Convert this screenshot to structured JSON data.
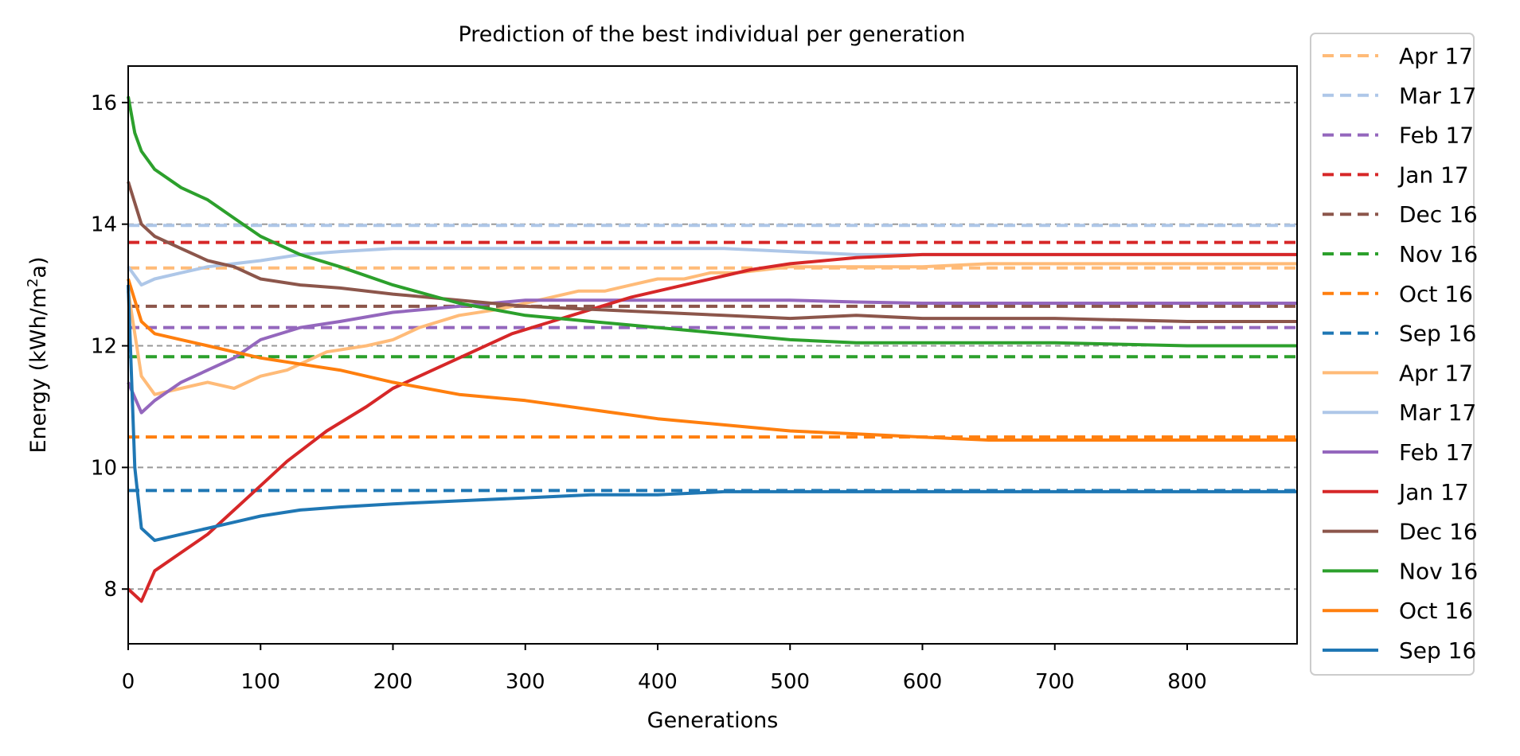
{
  "chart_data": {
    "type": "line",
    "title": "Prediction of the best individual per generation",
    "xlabel": "Generations",
    "ylabel_prefix": "Energy (kWh/m",
    "ylabel_sup": "2",
    "ylabel_suffix": "a)",
    "xlim": [
      0,
      883
    ],
    "ylim": [
      7.1,
      16.6
    ],
    "xticks": [
      0,
      100,
      200,
      300,
      400,
      500,
      600,
      700,
      800
    ],
    "yticks": [
      8,
      10,
      12,
      14,
      16
    ],
    "grid": "horizontal dashed grey at y-ticks",
    "legend_position": "outside right",
    "legend": [
      {
        "label": "Apr 17",
        "style": "dashed",
        "color": "#ffbb78"
      },
      {
        "label": "Mar 17",
        "style": "dashed",
        "color": "#aec7e8"
      },
      {
        "label": "Feb 17",
        "style": "dashed",
        "color": "#9467bd"
      },
      {
        "label": "Jan 17",
        "style": "dashed",
        "color": "#d62728"
      },
      {
        "label": "Dec 16",
        "style": "dashed",
        "color": "#8c564b"
      },
      {
        "label": "Nov 16",
        "style": "dashed",
        "color": "#2ca02c"
      },
      {
        "label": "Oct 16",
        "style": "dashed",
        "color": "#ff7f0e"
      },
      {
        "label": "Sep 16",
        "style": "dashed",
        "color": "#1f77b4"
      },
      {
        "label": "Apr 17",
        "style": "solid",
        "color": "#ffbb78"
      },
      {
        "label": "Mar 17",
        "style": "solid",
        "color": "#aec7e8"
      },
      {
        "label": "Feb 17",
        "style": "solid",
        "color": "#9467bd"
      },
      {
        "label": "Jan 17",
        "style": "solid",
        "color": "#d62728"
      },
      {
        "label": "Dec 16",
        "style": "solid",
        "color": "#8c564b"
      },
      {
        "label": "Nov 16",
        "style": "solid",
        "color": "#2ca02c"
      },
      {
        "label": "Oct 16",
        "style": "solid",
        "color": "#ff7f0e"
      },
      {
        "label": "Sep 16",
        "style": "solid",
        "color": "#1f77b4"
      }
    ],
    "reference_lines": [
      {
        "name": "Mar 17",
        "y": 13.98,
        "color": "#aec7e8"
      },
      {
        "name": "Jan 17",
        "y": 13.7,
        "color": "#d62728"
      },
      {
        "name": "Apr 17",
        "y": 13.28,
        "color": "#ffbb78"
      },
      {
        "name": "Dec 16",
        "y": 12.65,
        "color": "#8c564b"
      },
      {
        "name": "Feb 17",
        "y": 12.3,
        "color": "#9467bd"
      },
      {
        "name": "Nov 16",
        "y": 11.82,
        "color": "#2ca02c"
      },
      {
        "name": "Oct 16",
        "y": 10.5,
        "color": "#ff7f0e"
      },
      {
        "name": "Sep 16",
        "y": 9.62,
        "color": "#1f77b4"
      }
    ],
    "series": [
      {
        "name": "Apr 17",
        "color": "#ffbb78",
        "x": [
          0,
          10,
          20,
          40,
          60,
          80,
          100,
          120,
          150,
          180,
          200,
          220,
          250,
          280,
          300,
          320,
          340,
          360,
          380,
          400,
          420,
          440,
          460,
          480,
          500,
          550,
          600,
          650,
          700,
          800,
          883
        ],
        "y": [
          12.9,
          11.5,
          11.2,
          11.3,
          11.4,
          11.3,
          11.5,
          11.6,
          11.9,
          12.0,
          12.1,
          12.3,
          12.5,
          12.6,
          12.7,
          12.8,
          12.9,
          12.9,
          13.0,
          13.1,
          13.1,
          13.2,
          13.2,
          13.25,
          13.3,
          13.3,
          13.3,
          13.35,
          13.35,
          13.35,
          13.35
        ]
      },
      {
        "name": "Mar 17",
        "color": "#aec7e8",
        "x": [
          0,
          10,
          20,
          40,
          60,
          80,
          100,
          130,
          160,
          200,
          250,
          300,
          350,
          400,
          450,
          500,
          550,
          600,
          650,
          700,
          800,
          883
        ],
        "y": [
          13.3,
          13.0,
          13.1,
          13.2,
          13.3,
          13.35,
          13.4,
          13.5,
          13.55,
          13.6,
          13.6,
          13.6,
          13.6,
          13.6,
          13.6,
          13.55,
          13.5,
          13.5,
          13.5,
          13.5,
          13.5,
          13.5
        ]
      },
      {
        "name": "Feb 17",
        "color": "#9467bd",
        "x": [
          0,
          10,
          20,
          40,
          60,
          80,
          100,
          130,
          160,
          200,
          250,
          300,
          350,
          400,
          450,
          500,
          550,
          600,
          700,
          800,
          883
        ],
        "y": [
          11.4,
          10.9,
          11.1,
          11.4,
          11.6,
          11.8,
          12.1,
          12.3,
          12.4,
          12.55,
          12.65,
          12.75,
          12.75,
          12.75,
          12.75,
          12.75,
          12.72,
          12.7,
          12.7,
          12.7,
          12.7
        ]
      },
      {
        "name": "Jan 17",
        "color": "#d62728",
        "x": [
          0,
          10,
          20,
          40,
          60,
          80,
          100,
          120,
          150,
          180,
          200,
          230,
          260,
          290,
          320,
          350,
          380,
          410,
          440,
          470,
          500,
          550,
          600,
          650,
          700,
          800,
          883
        ],
        "y": [
          8.0,
          7.8,
          8.3,
          8.6,
          8.9,
          9.3,
          9.7,
          10.1,
          10.6,
          11.0,
          11.3,
          11.6,
          11.9,
          12.2,
          12.4,
          12.6,
          12.8,
          12.95,
          13.1,
          13.25,
          13.35,
          13.45,
          13.5,
          13.5,
          13.5,
          13.5,
          13.5
        ]
      },
      {
        "name": "Dec 16",
        "color": "#8c564b",
        "x": [
          0,
          10,
          20,
          40,
          60,
          80,
          100,
          130,
          160,
          200,
          250,
          300,
          350,
          400,
          450,
          500,
          550,
          600,
          650,
          700,
          800,
          883
        ],
        "y": [
          14.7,
          14.0,
          13.8,
          13.6,
          13.4,
          13.3,
          13.1,
          13.0,
          12.95,
          12.85,
          12.75,
          12.65,
          12.6,
          12.55,
          12.5,
          12.45,
          12.5,
          12.45,
          12.45,
          12.45,
          12.4,
          12.4
        ]
      },
      {
        "name": "Nov 16",
        "color": "#2ca02c",
        "x": [
          0,
          5,
          10,
          20,
          40,
          60,
          80,
          100,
          130,
          160,
          200,
          250,
          300,
          350,
          400,
          450,
          500,
          550,
          600,
          650,
          700,
          800,
          883
        ],
        "y": [
          16.1,
          15.5,
          15.2,
          14.9,
          14.6,
          14.4,
          14.1,
          13.8,
          13.5,
          13.3,
          13.0,
          12.7,
          12.5,
          12.4,
          12.3,
          12.2,
          12.1,
          12.05,
          12.05,
          12.05,
          12.05,
          12.0,
          12.0
        ]
      },
      {
        "name": "Oct 16",
        "color": "#ff7f0e",
        "x": [
          0,
          10,
          20,
          40,
          60,
          80,
          100,
          130,
          160,
          200,
          250,
          300,
          350,
          400,
          450,
          500,
          550,
          600,
          650,
          700,
          800,
          883
        ],
        "y": [
          13.1,
          12.4,
          12.2,
          12.1,
          12.0,
          11.9,
          11.8,
          11.7,
          11.6,
          11.4,
          11.2,
          11.1,
          10.95,
          10.8,
          10.7,
          10.6,
          10.55,
          10.5,
          10.45,
          10.45,
          10.45,
          10.45
        ]
      },
      {
        "name": "Sep 16",
        "color": "#1f77b4",
        "x": [
          0,
          5,
          10,
          20,
          40,
          60,
          80,
          100,
          130,
          160,
          200,
          250,
          300,
          350,
          400,
          450,
          500,
          550,
          600,
          650,
          700,
          800,
          883
        ],
        "y": [
          13.0,
          10.0,
          9.0,
          8.8,
          8.9,
          9.0,
          9.1,
          9.2,
          9.3,
          9.35,
          9.4,
          9.45,
          9.5,
          9.55,
          9.55,
          9.6,
          9.6,
          9.6,
          9.6,
          9.6,
          9.6,
          9.6,
          9.6
        ]
      }
    ]
  }
}
